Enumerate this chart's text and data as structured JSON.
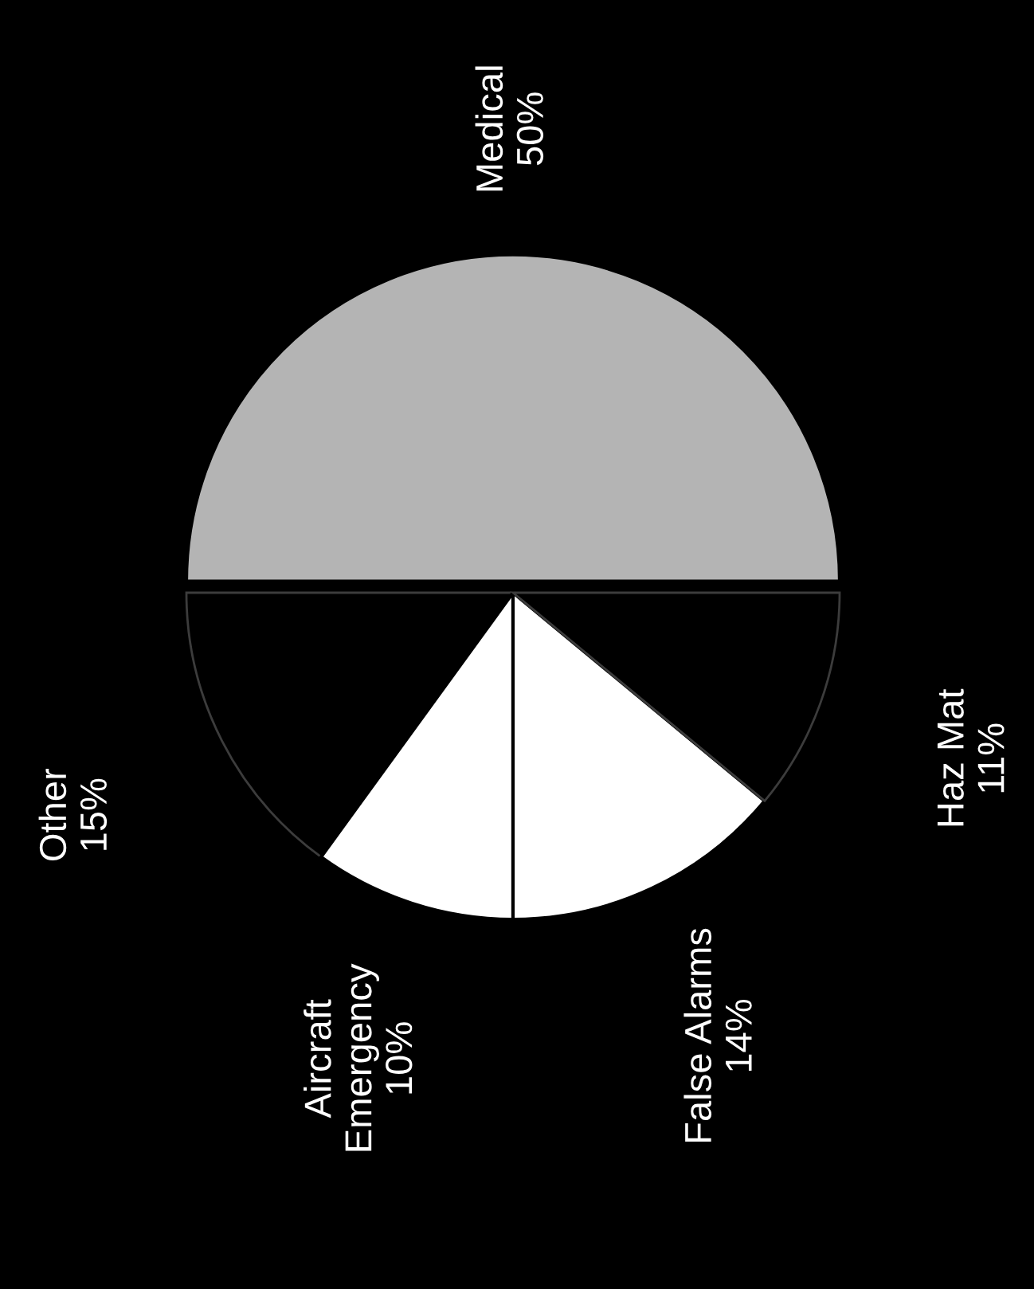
{
  "chart_data": {
    "type": "pie",
    "categories": [
      "Medical",
      "Other",
      "Aircraft\nEmergency",
      "False Alarms",
      "Haz Mat"
    ],
    "values": [
      50,
      15,
      10,
      14,
      11
    ],
    "value_labels": [
      "50%",
      "15%",
      "10%",
      "14%",
      "11%"
    ],
    "colors": [
      "#b4b4b4",
      "#000000",
      "#ffffff",
      "#ffffff",
      "#000000"
    ]
  }
}
